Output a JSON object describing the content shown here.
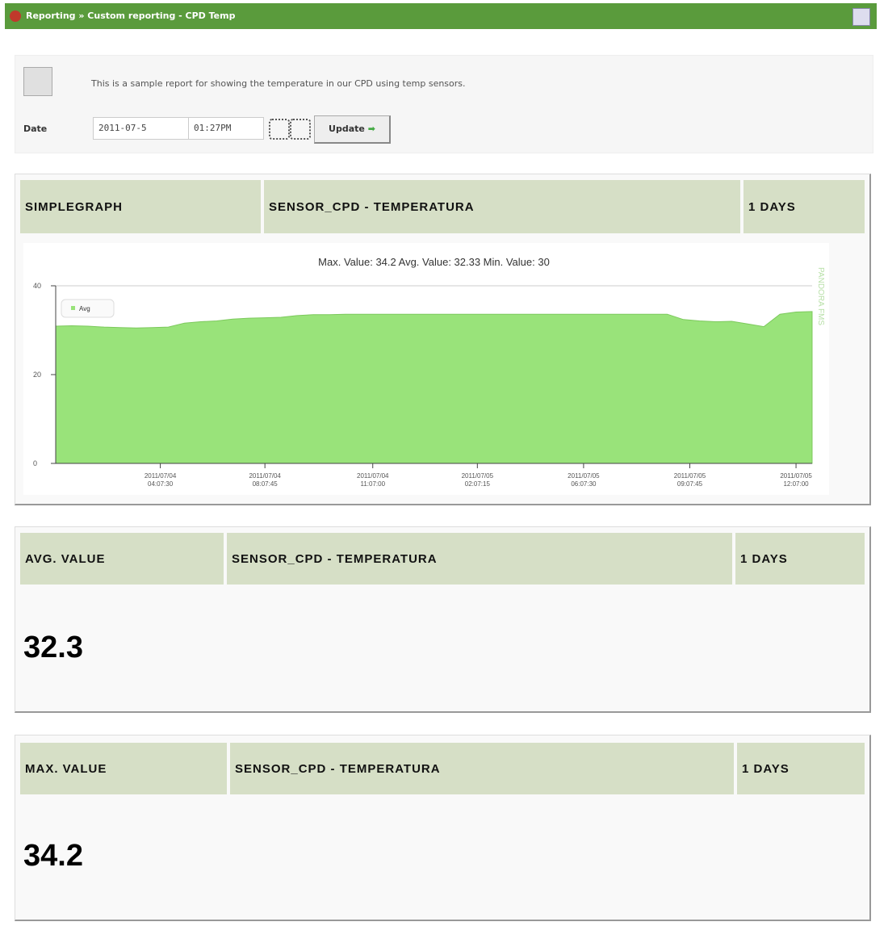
{
  "header": {
    "breadcrumb": "Reporting » Custom reporting - CPD Temp"
  },
  "report": {
    "description": "This is a sample report for showing the temperature in our CPD using temp sensors.",
    "date_label": "Date",
    "date_value": "2011-07-5",
    "time_value": "01:27PM",
    "update_button": "Update"
  },
  "sections": [
    {
      "type": "SIMPLEGRAPH",
      "agent": "SENSOR_CPD - TEMPERATURA",
      "period": "1 DAYS"
    },
    {
      "type": "AVG. VALUE",
      "agent": "SENSOR_CPD - TEMPERATURA",
      "period": "1 DAYS",
      "value": "32.3"
    },
    {
      "type": "MAX. VALUE",
      "agent": "SENSOR_CPD - TEMPERATURA",
      "period": "1 DAYS",
      "value": "34.2"
    }
  ],
  "chart_data": {
    "type": "area",
    "subtitle": "Max. Value: 34.2   Avg. Value: 32.33   Min. Value: 30",
    "watermark": "PANDORA FMS",
    "legend": "top-left",
    "series": [
      {
        "name": "Avg",
        "color": "#99e37a",
        "values": [
          30.9,
          31.0,
          30.9,
          30.7,
          30.6,
          30.5,
          30.6,
          30.7,
          31.6,
          31.9,
          32.1,
          32.5,
          32.7,
          32.8,
          32.9,
          33.3,
          33.5,
          33.5,
          33.6,
          33.6,
          33.6,
          33.6,
          33.6,
          33.6,
          33.6,
          33.6,
          33.6,
          33.6,
          33.6,
          33.6,
          33.6,
          33.6,
          33.6,
          33.6,
          33.6,
          33.6,
          33.6,
          33.6,
          33.6,
          32.4,
          32.1,
          31.9,
          32.0,
          31.4,
          30.8,
          33.6,
          34.1,
          34.2
        ]
      }
    ],
    "xlim": [
      0,
      47
    ],
    "xticks": [
      {
        "value": 6.5,
        "label": "2011/07/04 04:07:30"
      },
      {
        "value": 13,
        "label": "2011/07/04 08:07:45"
      },
      {
        "value": 19.7,
        "label": "2011/07/04 11:07:00"
      },
      {
        "value": 26.2,
        "label": "2011/07/05 02:07:15"
      },
      {
        "value": 32.8,
        "label": "2011/07/05 06:07:30"
      },
      {
        "value": 39.4,
        "label": "2011/07/05 09:07:45"
      },
      {
        "value": 46,
        "label": "2011/07/05 12:07:00"
      }
    ],
    "ylim": [
      0,
      40
    ],
    "yticks": [
      0,
      20,
      40
    ],
    "grid": false
  }
}
